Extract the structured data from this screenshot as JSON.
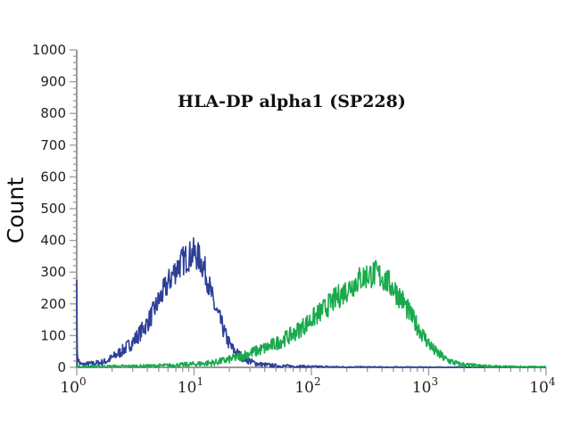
{
  "chart_data": {
    "type": "line",
    "title": "HLA-DP alpha1 (SP228)",
    "xlabel": "",
    "ylabel": "Count",
    "xscale": "log",
    "xlim": [
      1,
      10000
    ],
    "ylim": [
      0,
      1000
    ],
    "x_ticks": [
      {
        "base": "10",
        "exp": "0"
      },
      {
        "base": "10",
        "exp": "1"
      },
      {
        "base": "10",
        "exp": "2"
      },
      {
        "base": "10",
        "exp": "3"
      },
      {
        "base": "10",
        "exp": "4"
      }
    ],
    "y_ticks": [
      "0",
      "100",
      "200",
      "300",
      "400",
      "500",
      "600",
      "700",
      "800",
      "900",
      "1000"
    ],
    "grid": false,
    "legend": "none",
    "series": [
      {
        "color": "#2e3f97",
        "x": [
          1,
          1.01,
          1.05,
          1.1,
          1.2,
          1.4,
          1.6,
          1.8,
          2.0,
          2.5,
          3.0,
          3.5,
          4.0,
          4.5,
          5.0,
          6.0,
          7.0,
          8.0,
          9.0,
          10.0,
          11.0,
          12.0,
          13.0,
          14.0,
          15.0,
          17.0,
          19.0,
          21.0,
          24.0,
          28.0,
          32.0,
          36.0,
          40.0,
          50.0,
          60.0,
          80.0,
          100.0,
          200.0,
          1000.0,
          10000.0
        ],
        "y": [
          320,
          40,
          15,
          8,
          10,
          12,
          15,
          20,
          30,
          55,
          80,
          110,
          140,
          175,
          210,
          265,
          310,
          335,
          350,
          360,
          345,
          320,
          280,
          230,
          190,
          140,
          90,
          60,
          40,
          25,
          15,
          10,
          8,
          5,
          4,
          3,
          2,
          1,
          0,
          0
        ]
      },
      {
        "color": "#1aa94c",
        "x": [
          1,
          2,
          4,
          6,
          8,
          10,
          15,
          20,
          25,
          30,
          40,
          50,
          70,
          100,
          130,
          160,
          200,
          250,
          300,
          350,
          400,
          500,
          600,
          700,
          900,
          1100,
          1400,
          1800,
          2500,
          4000,
          10000
        ],
        "y": [
          2,
          3,
          4,
          6,
          8,
          10,
          15,
          25,
          35,
          45,
          60,
          75,
          105,
          150,
          185,
          215,
          245,
          275,
          290,
          295,
          285,
          250,
          210,
          165,
          100,
          55,
          25,
          10,
          5,
          2,
          1
        ]
      }
    ]
  }
}
